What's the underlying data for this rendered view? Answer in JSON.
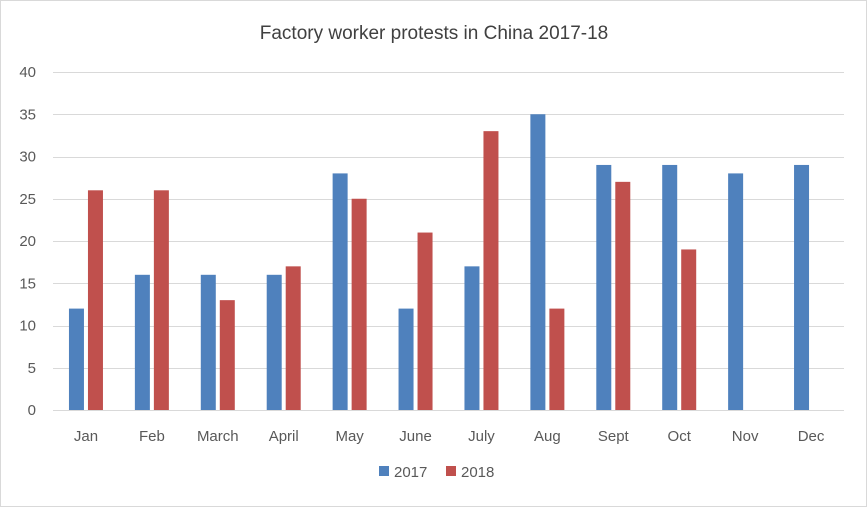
{
  "chart_data": {
    "type": "bar",
    "title": "Factory worker protests in China 2017-18",
    "xlabel": "",
    "ylabel": "",
    "categories": [
      "Jan",
      "Feb",
      "March",
      "April",
      "May",
      "June",
      "July",
      "Aug",
      "Sept",
      "Oct",
      "Nov",
      "Dec"
    ],
    "series": [
      {
        "name": "2017",
        "color": "#4f81bd",
        "values": [
          12,
          16,
          16,
          16,
          28,
          12,
          17,
          35,
          29,
          29,
          28,
          29
        ]
      },
      {
        "name": "2018",
        "color": "#c0504d",
        "values": [
          26,
          26,
          13,
          17,
          25,
          21,
          33,
          12,
          27,
          19,
          null,
          null
        ]
      }
    ],
    "ylim": [
      0,
      40
    ],
    "yticks": [
      0,
      5,
      10,
      15,
      20,
      25,
      30,
      35,
      40
    ],
    "grid": true,
    "legend_position": "bottom"
  }
}
